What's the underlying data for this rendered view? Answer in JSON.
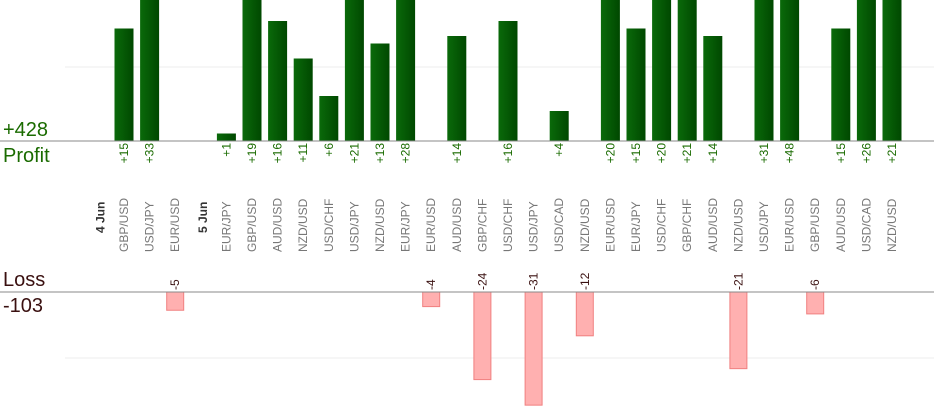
{
  "summary": {
    "profit_total": "+428",
    "profit_label": "Profit",
    "loss_label": "Loss",
    "loss_total": "-103"
  },
  "colors": {
    "profit_bar": "#0a6a0a",
    "profit_bar_dark": "#004800",
    "loss_bar": "#ffb0b0",
    "loss_bar_edge": "#f08080",
    "profit_text": "#1a6b00",
    "loss_text": "#3a1010",
    "axis": "#888888",
    "grid": "#eeeeee",
    "pair_label": "#777777"
  },
  "chart_data": {
    "type": "bar",
    "groups": [
      {
        "date": "4 Jun",
        "trades": [
          {
            "pair": "GBP/USD",
            "value": 15
          },
          {
            "pair": "USD/JPY",
            "value": 33
          },
          {
            "pair": "EUR/USD",
            "value": -5
          }
        ]
      },
      {
        "date": "5 Jun",
        "trades": [
          {
            "pair": "EUR/JPY",
            "value": 1
          },
          {
            "pair": "GBP/USD",
            "value": 19
          },
          {
            "pair": "AUD/USD",
            "value": 16
          },
          {
            "pair": "NZD/USD",
            "value": 11
          },
          {
            "pair": "USD/CHF",
            "value": 6
          },
          {
            "pair": "USD/JPY",
            "value": 21
          },
          {
            "pair": "NZD/USD",
            "value": 13
          },
          {
            "pair": "EUR/JPY",
            "value": 28
          },
          {
            "pair": "EUR/USD",
            "value": -4
          },
          {
            "pair": "AUD/USD",
            "value": 14
          },
          {
            "pair": "GBP/CHF",
            "value": -24
          },
          {
            "pair": "USD/CHF",
            "value": 16
          },
          {
            "pair": "USD/JPY",
            "value": -31
          },
          {
            "pair": "USD/CAD",
            "value": 4
          },
          {
            "pair": "NZD/USD",
            "value": -12
          },
          {
            "pair": "EUR/USD",
            "value": 20
          },
          {
            "pair": "EUR/JPY",
            "value": 15
          },
          {
            "pair": "USD/CHF",
            "value": 20
          },
          {
            "pair": "GBP/CHF",
            "value": 21
          },
          {
            "pair": "AUD/USD",
            "value": 14
          },
          {
            "pair": "NZD/USD",
            "value": -21
          },
          {
            "pair": "USD/JPY",
            "value": 31
          },
          {
            "pair": "EUR/USD",
            "value": 48
          },
          {
            "pair": "GBP/USD",
            "value": -6
          },
          {
            "pair": "AUD/USD",
            "value": 15
          },
          {
            "pair": "USD/CAD",
            "value": 26
          },
          {
            "pair": "NZD/USD",
            "value": 21
          }
        ]
      }
    ],
    "profit_axis_visible_max": 19,
    "loss_axis_visible_min": -31,
    "grid": true
  }
}
